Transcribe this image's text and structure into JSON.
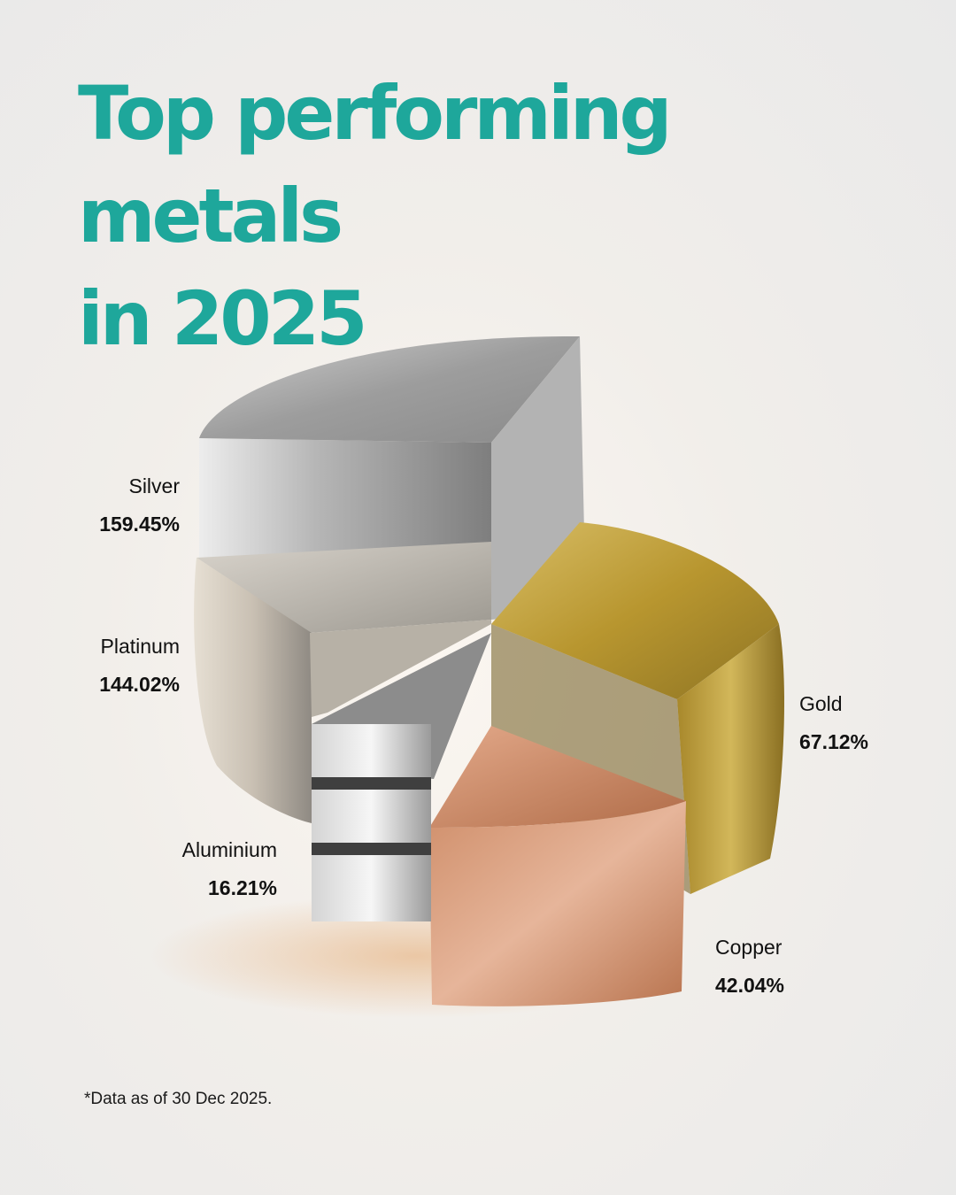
{
  "title": {
    "line1": "Top performing metals",
    "line2": "in 2025"
  },
  "chart_data": {
    "type": "pie",
    "categories": [
      "Silver",
      "Platinum",
      "Gold",
      "Copper",
      "Aluminium"
    ],
    "values": [
      159.45,
      144.02,
      67.12,
      42.04,
      16.21
    ],
    "value_labels": [
      "159.45%",
      "144.02%",
      "67.12%",
      "42.04%",
      "16.21%"
    ],
    "colors": [
      "#b9b9b9",
      "#d9d2c6",
      "#c9a94c",
      "#c98a66",
      "#d8d8d8"
    ],
    "style": "3d-metal"
  },
  "footnote": "*Data as of 30 Dec 2025."
}
